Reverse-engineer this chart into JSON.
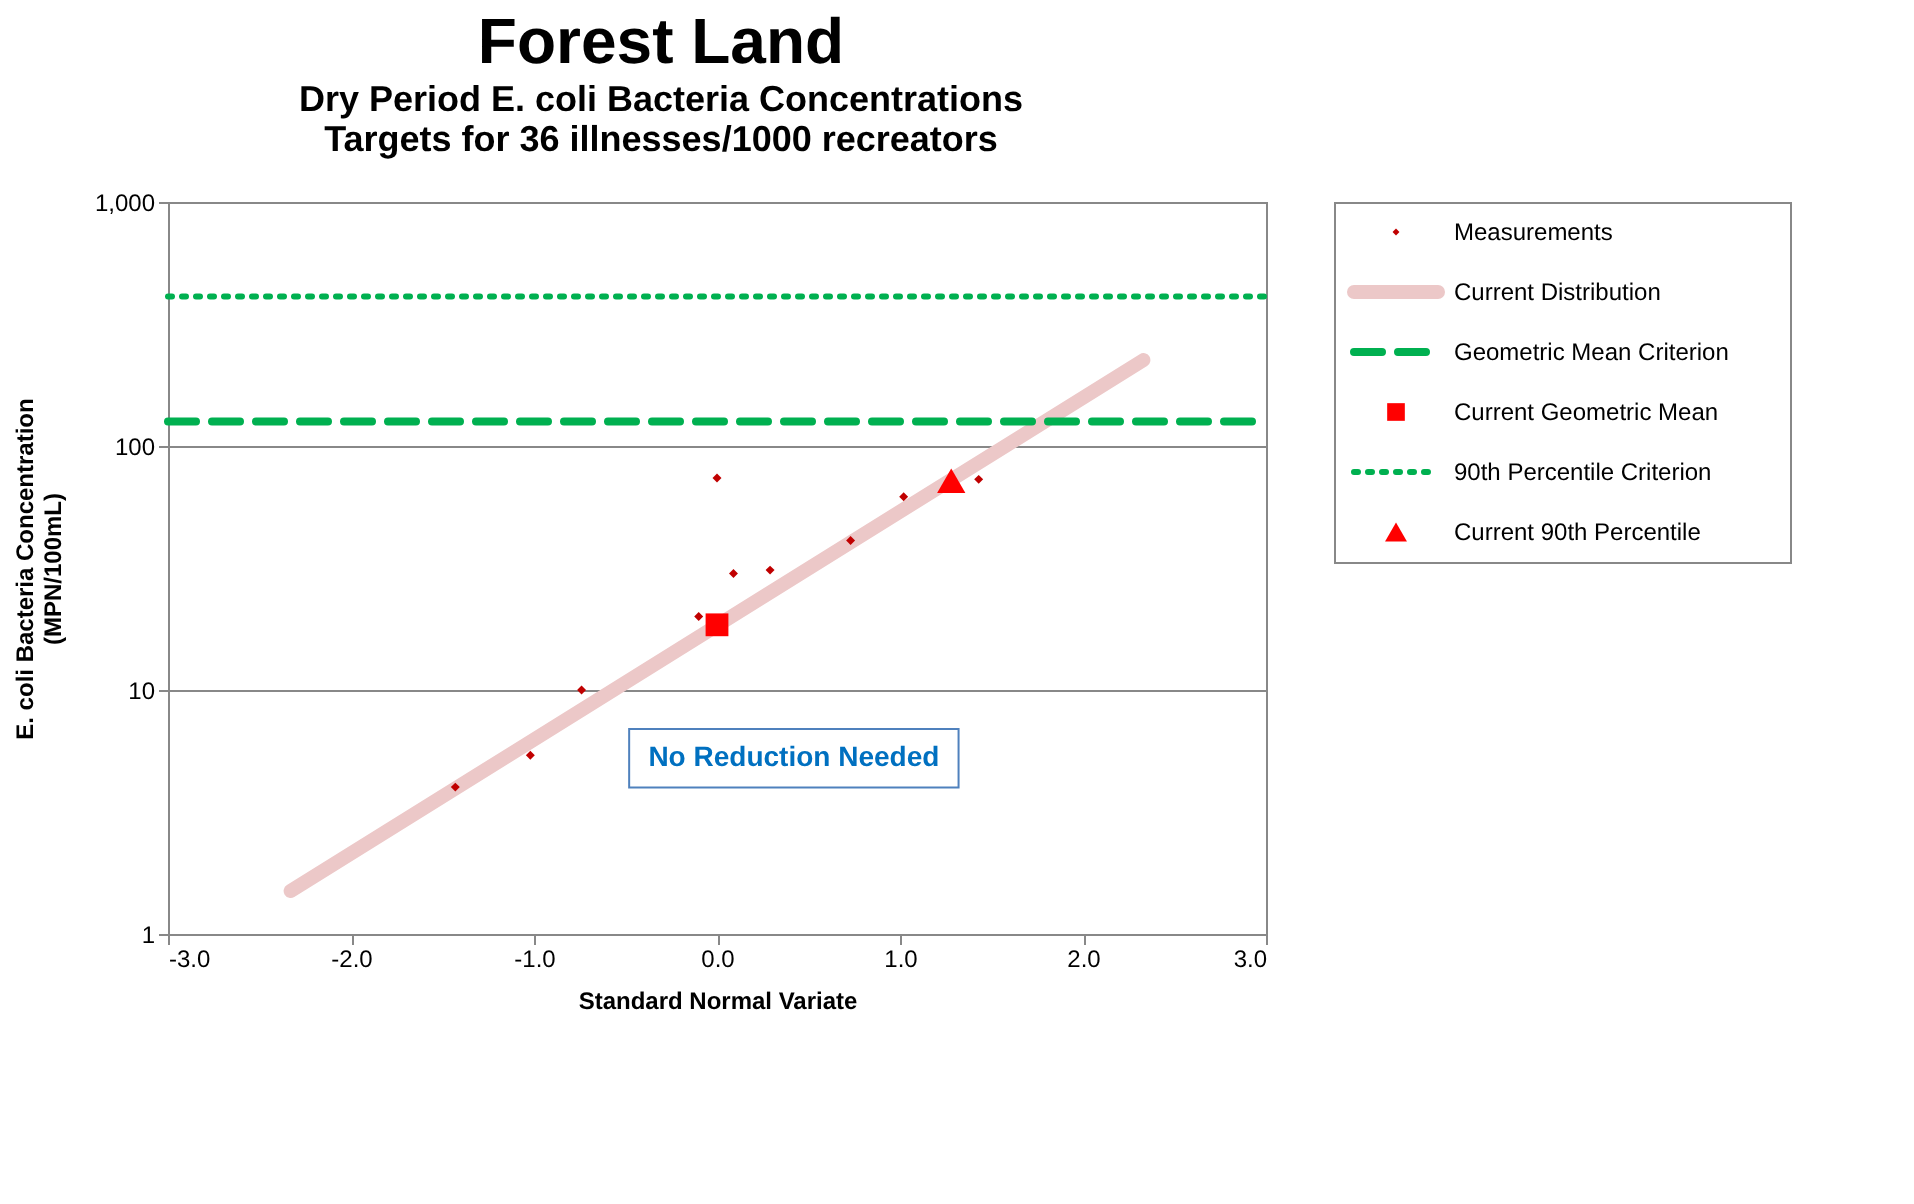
{
  "chart_data": {
    "type": "scatter",
    "title": "Forest Land",
    "subtitle": [
      "Dry Period E. coli Bacteria Concentrations",
      "Targets for 36 illnesses/1000 recreators"
    ],
    "xlabel": "Standard Normal Variate",
    "ylabel": [
      "E. coli Bacteria Concentration",
      "(MPN/100mL)"
    ],
    "log": "y",
    "grid": "y",
    "legend": "right",
    "xlim": [
      -3,
      3
    ],
    "xticks": [
      {
        "value": -3,
        "label": "-3.0"
      },
      {
        "value": -2,
        "label": "-2.0"
      },
      {
        "value": -1,
        "label": "-1.0"
      },
      {
        "value": 0,
        "label": "0.0"
      },
      {
        "value": 1,
        "label": "1.0"
      },
      {
        "value": 2,
        "label": "2.0"
      },
      {
        "value": 3,
        "label": "3.0"
      }
    ],
    "ylim": [
      1,
      1000
    ],
    "yticks": [
      1,
      10,
      100,
      {
        "value": 1000,
        "label": "1,000"
      }
    ],
    "annotations": [
      "No Reduction Needed"
    ],
    "series": [
      {
        "name": "Measurements",
        "type": "scatter",
        "marker": "diamond",
        "color": "#c00000",
        "x": [
          -1.43,
          -1.02,
          -0.74,
          -0.1,
          0.0,
          0.09,
          0.29,
          0.73,
          1.02,
          1.43
        ],
        "values": [
          4.0,
          5.4,
          10,
          20,
          74,
          30,
          31,
          41,
          62,
          73
        ]
      },
      {
        "name": "Current Distribution",
        "type": "line",
        "line_style": "solid",
        "color": "#ecc8c8",
        "x": [
          -2.33,
          2.33
        ],
        "values": [
          1.5,
          225
        ]
      },
      {
        "name": "Geometric Mean Criterion",
        "type": "line",
        "line_style": "dashed",
        "color": "#00b050",
        "x": [
          -3,
          3
        ],
        "values": [
          126,
          126
        ]
      },
      {
        "name": "Current Geometric Mean",
        "type": "scatter",
        "marker": "square",
        "color": "#ff0000",
        "x": [
          0.0
        ],
        "values": [
          18.5
        ]
      },
      {
        "name": "90th Percentile Criterion",
        "type": "line",
        "line_style": "dotted",
        "color": "#00b050",
        "x": [
          -3,
          3
        ],
        "values": [
          410,
          410
        ]
      },
      {
        "name": "Current 90th Percentile",
        "type": "scatter",
        "marker": "triangle",
        "color": "#ff0000",
        "x": [
          1.28
        ],
        "values": [
          72
        ]
      }
    ]
  }
}
